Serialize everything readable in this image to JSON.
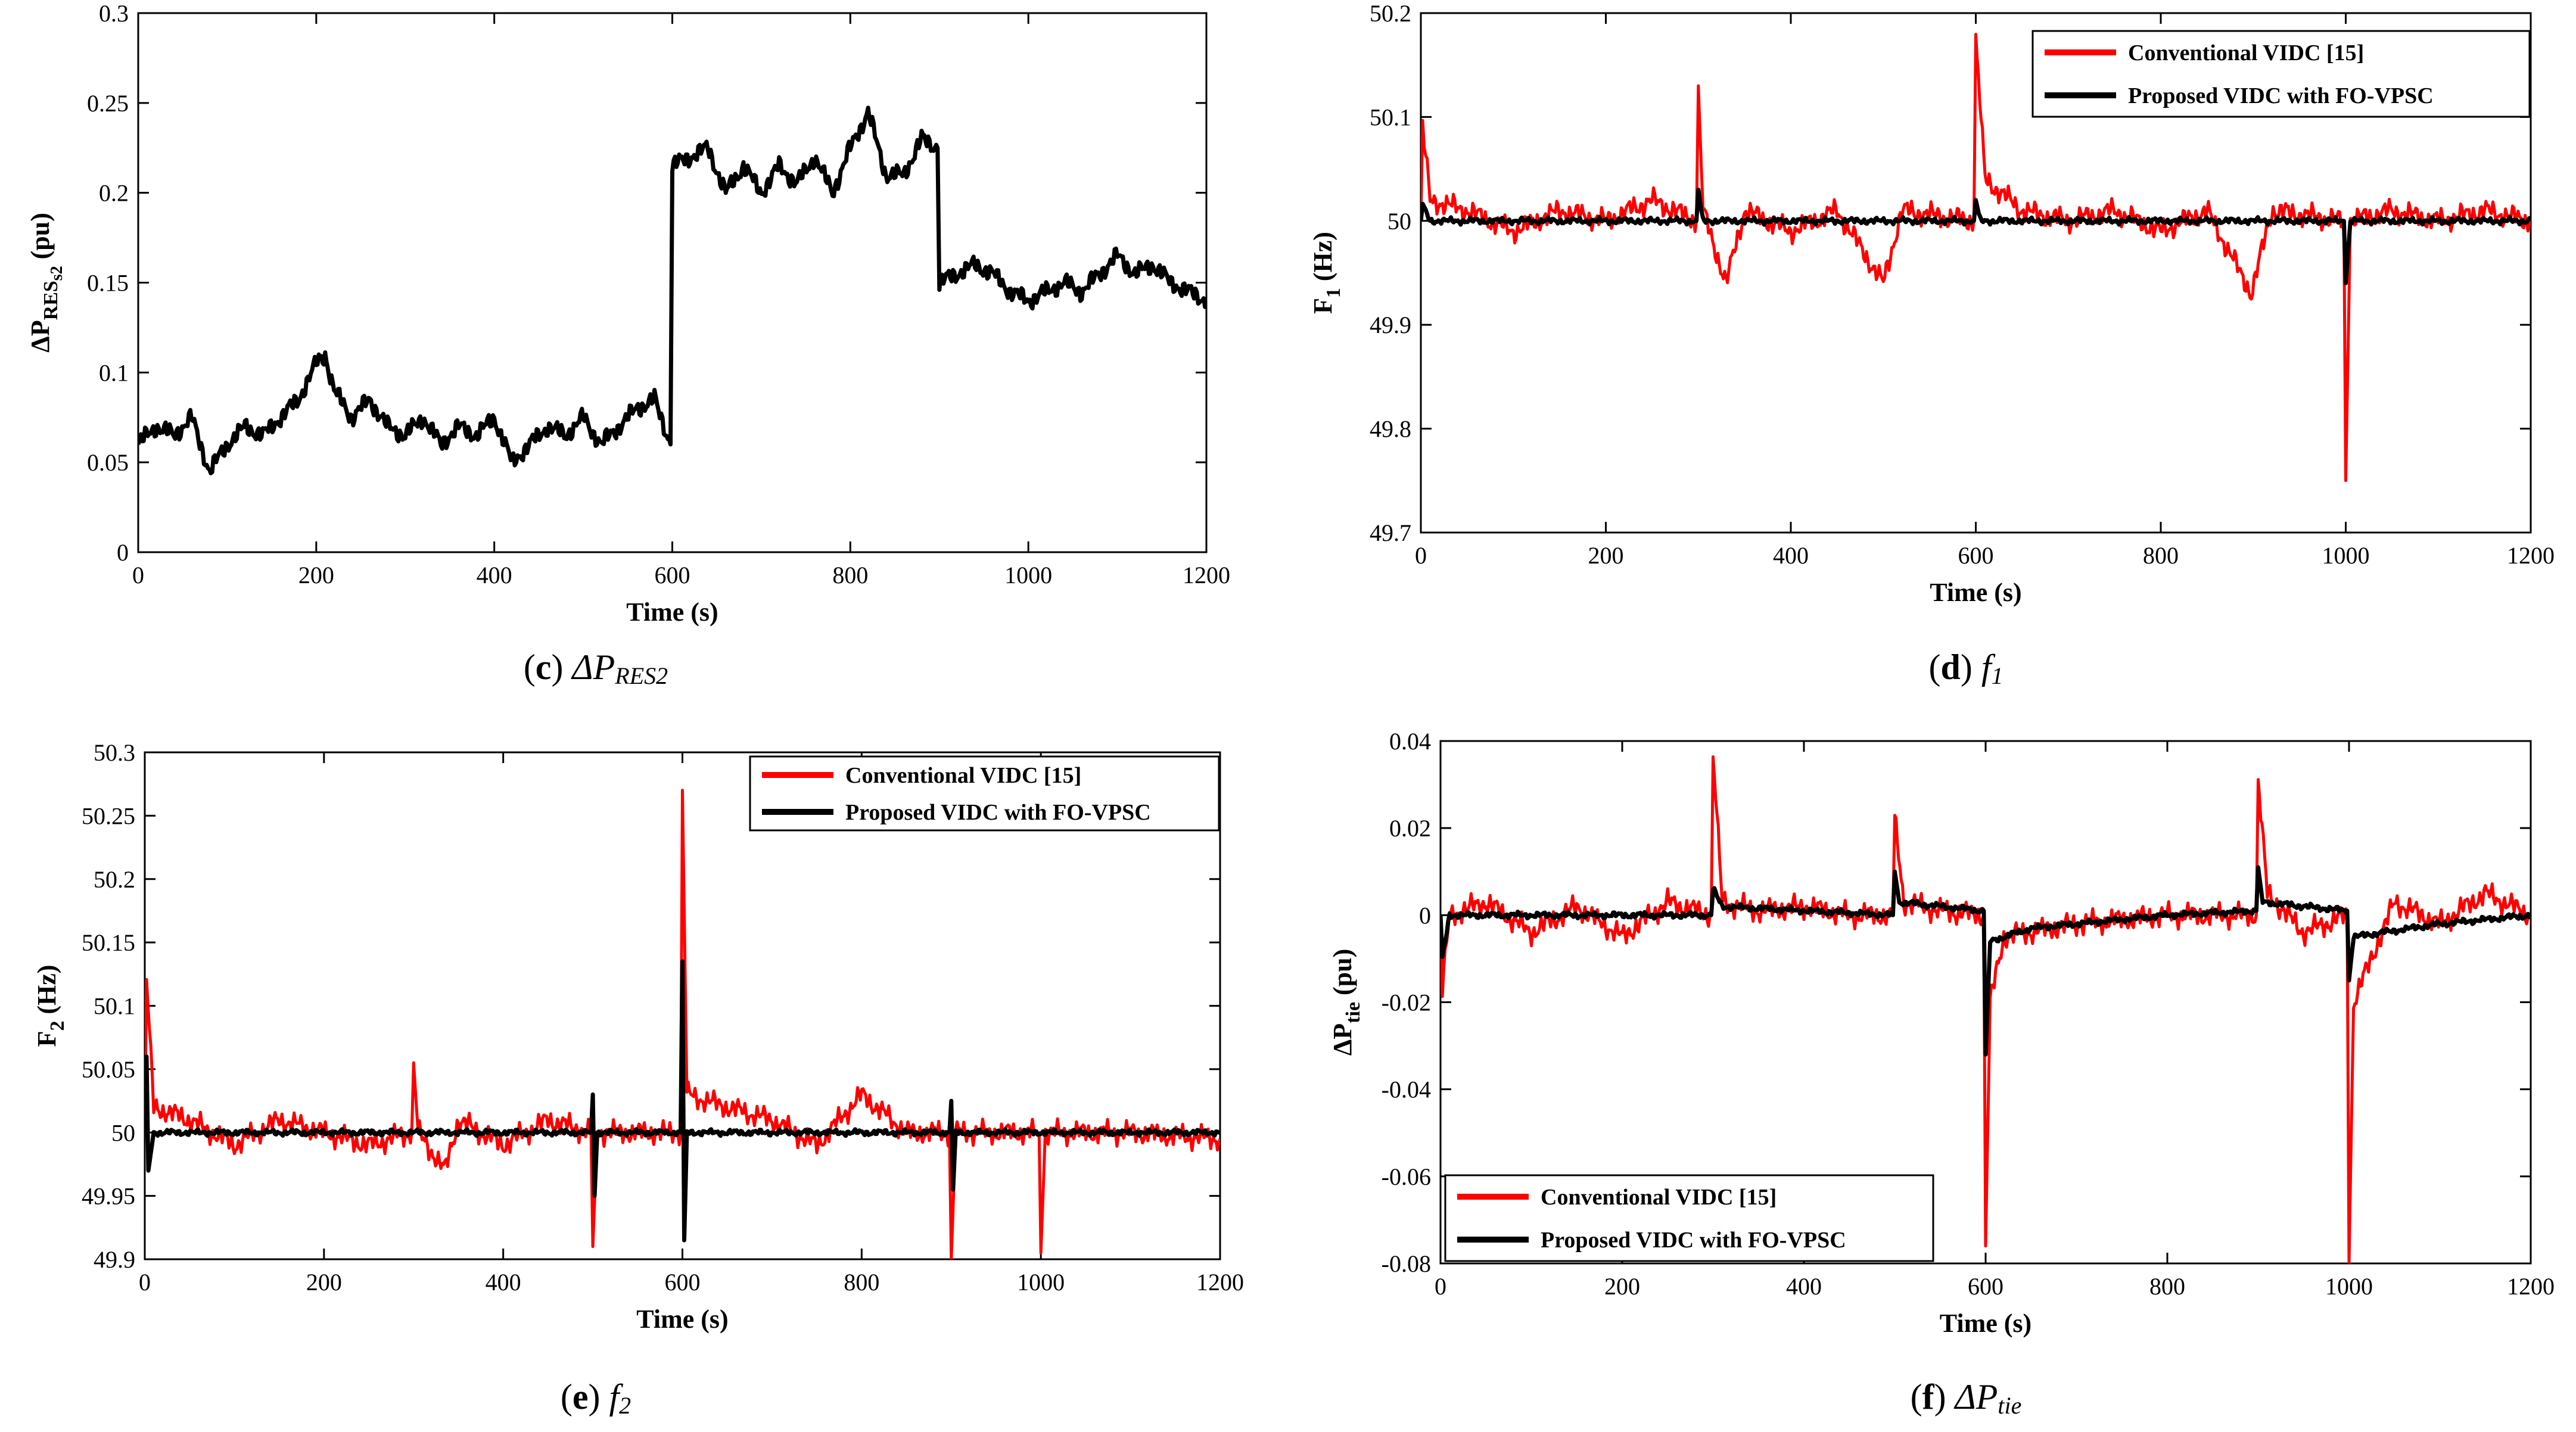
{
  "colors": {
    "conventional": "#ff0000",
    "proposed": "#000000",
    "single": "#000000"
  },
  "chart_data": [
    {
      "id": "c",
      "type": "line",
      "caption": {
        "letter": "(c)",
        "symbol": "ΔP",
        "sub": "RES2"
      },
      "xlabel": "Time (s)",
      "ylabel_main": "ΔP",
      "ylabel_sub": "RES",
      "ylabel_subsub": "s2",
      "ylabel_suffix": " (pu)",
      "xlim": [
        0,
        1200
      ],
      "ylim": [
        0,
        0.3
      ],
      "xticks": [
        0,
        200,
        400,
        600,
        800,
        1000,
        1200
      ],
      "yticks": [
        0,
        0.05,
        0.1,
        0.15,
        0.2,
        0.25,
        0.3
      ],
      "ytick_labels": [
        "0",
        "0.05",
        "0.1",
        "0.15",
        "0.2",
        "0.25",
        "0.3"
      ],
      "legend": [],
      "series": [
        {
          "name": "ΔP_RES2",
          "color_key": "single",
          "points": [
            [
              0,
              0.06
            ],
            [
              20,
              0.07
            ],
            [
              40,
              0.065
            ],
            [
              60,
              0.075
            ],
            [
              80,
              0.045
            ],
            [
              100,
              0.06
            ],
            [
              120,
              0.07
            ],
            [
              140,
              0.065
            ],
            [
              160,
              0.075
            ],
            [
              180,
              0.085
            ],
            [
              200,
              0.105
            ],
            [
              210,
              0.11
            ],
            [
              220,
              0.09
            ],
            [
              240,
              0.075
            ],
            [
              260,
              0.085
            ],
            [
              280,
              0.07
            ],
            [
              300,
              0.065
            ],
            [
              320,
              0.075
            ],
            [
              340,
              0.06
            ],
            [
              360,
              0.07
            ],
            [
              380,
              0.065
            ],
            [
              400,
              0.075
            ],
            [
              420,
              0.05
            ],
            [
              440,
              0.06
            ],
            [
              460,
              0.07
            ],
            [
              480,
              0.065
            ],
            [
              500,
              0.075
            ],
            [
              520,
              0.06
            ],
            [
              540,
              0.07
            ],
            [
              560,
              0.08
            ],
            [
              580,
              0.085
            ],
            [
              598,
              0.06
            ],
            [
              600,
              0.215
            ],
            [
              620,
              0.22
            ],
            [
              640,
              0.225
            ],
            [
              660,
              0.2
            ],
            [
              680,
              0.215
            ],
            [
              700,
              0.2
            ],
            [
              720,
              0.215
            ],
            [
              740,
              0.205
            ],
            [
              760,
              0.22
            ],
            [
              780,
              0.2
            ],
            [
              800,
              0.225
            ],
            [
              820,
              0.245
            ],
            [
              840,
              0.21
            ],
            [
              860,
              0.21
            ],
            [
              880,
              0.23
            ],
            [
              898,
              0.225
            ],
            [
              900,
              0.15
            ],
            [
              920,
              0.155
            ],
            [
              940,
              0.16
            ],
            [
              960,
              0.155
            ],
            [
              980,
              0.145
            ],
            [
              1000,
              0.14
            ],
            [
              1020,
              0.145
            ],
            [
              1040,
              0.15
            ],
            [
              1060,
              0.145
            ],
            [
              1080,
              0.155
            ],
            [
              1100,
              0.165
            ],
            [
              1120,
              0.155
            ],
            [
              1140,
              0.16
            ],
            [
              1160,
              0.15
            ],
            [
              1180,
              0.145
            ],
            [
              1200,
              0.14
            ]
          ]
        }
      ]
    },
    {
      "id": "d",
      "type": "line",
      "caption": {
        "letter": "(d)",
        "symbol": "f",
        "sub": "1"
      },
      "xlabel": "Time (s)",
      "ylabel_main": "F",
      "ylabel_sub": "1",
      "ylabel_subsub": "",
      "ylabel_suffix": " (Hz)",
      "xlim": [
        0,
        1200
      ],
      "ylim": [
        49.7,
        50.2
      ],
      "xticks": [
        0,
        200,
        400,
        600,
        800,
        1000,
        1200
      ],
      "yticks": [
        49.7,
        49.8,
        49.9,
        50,
        50.1,
        50.2
      ],
      "ytick_labels": [
        "49.7",
        "49.8",
        "49.9",
        "50",
        "50.1",
        "50.2"
      ],
      "legend": [
        "Conventional VIDC [15]",
        "Proposed VIDC with FO-VPSC"
      ],
      "legend_position": "top-right",
      "series": [
        {
          "name": "Conventional VIDC [15]",
          "color_key": "conventional",
          "points": [
            [
              0,
              50.0
            ],
            [
              2,
              50.09
            ],
            [
              10,
              50.02
            ],
            [
              50,
              50.01
            ],
            [
              100,
              49.99
            ],
            [
              150,
              50.01
            ],
            [
              200,
              50.0
            ],
            [
              250,
              50.02
            ],
            [
              298,
              50.0
            ],
            [
              300,
              50.13
            ],
            [
              305,
              50.01
            ],
            [
              330,
              49.94
            ],
            [
              350,
              50.01
            ],
            [
              400,
              49.99
            ],
            [
              450,
              50.01
            ],
            [
              500,
              49.94
            ],
            [
              520,
              50.01
            ],
            [
              598,
              50.0
            ],
            [
              600,
              50.175
            ],
            [
              610,
              50.04
            ],
            [
              650,
              50.01
            ],
            [
              700,
              50.0
            ],
            [
              750,
              50.01
            ],
            [
              800,
              49.99
            ],
            [
              850,
              50.01
            ],
            [
              898,
              49.93
            ],
            [
              920,
              50.01
            ],
            [
              998,
              50.0
            ],
            [
              1000,
              49.75
            ],
            [
              1005,
              50.0
            ],
            [
              1050,
              50.01
            ],
            [
              1100,
              50.0
            ],
            [
              1150,
              50.01
            ],
            [
              1200,
              50.0
            ]
          ]
        },
        {
          "name": "Proposed VIDC with FO-VPSC",
          "color_key": "proposed",
          "points": [
            [
              0,
              50.0
            ],
            [
              2,
              50.015
            ],
            [
              10,
              50.0
            ],
            [
              298,
              50.0
            ],
            [
              300,
              50.03
            ],
            [
              305,
              50.0
            ],
            [
              598,
              50.0
            ],
            [
              600,
              50.02
            ],
            [
              605,
              50.0
            ],
            [
              998,
              50.0
            ],
            [
              1000,
              49.94
            ],
            [
              1005,
              50.0
            ],
            [
              1200,
              50.0
            ]
          ]
        }
      ]
    },
    {
      "id": "e",
      "type": "line",
      "caption": {
        "letter": "(e)",
        "symbol": "f",
        "sub": "2"
      },
      "xlabel": "Time (s)",
      "ylabel_main": "F",
      "ylabel_sub": "2",
      "ylabel_subsub": "",
      "ylabel_suffix": " (Hz)",
      "xlim": [
        0,
        1200
      ],
      "ylim": [
        49.9,
        50.3
      ],
      "xticks": [
        0,
        200,
        400,
        600,
        800,
        1000,
        1200
      ],
      "yticks": [
        49.9,
        49.95,
        50,
        50.05,
        50.1,
        50.15,
        50.2,
        50.25,
        50.3
      ],
      "ytick_labels": [
        "49.9",
        "49.95",
        "50",
        "50.05",
        "50.1",
        "50.15",
        "50.2",
        "50.25",
        "50.3"
      ],
      "legend": [
        "Conventional VIDC [15]",
        "Proposed VIDC with FO-VPSC"
      ],
      "legend_position": "top-right",
      "series": [
        {
          "name": "Conventional VIDC [15]",
          "color_key": "conventional",
          "points": [
            [
              0,
              50.0
            ],
            [
              2,
              50.12
            ],
            [
              10,
              50.02
            ],
            [
              50,
              50.01
            ],
            [
              100,
              49.99
            ],
            [
              150,
              50.01
            ],
            [
              200,
              50.0
            ],
            [
              250,
              49.99
            ],
            [
              298,
              50.0
            ],
            [
              300,
              50.055
            ],
            [
              305,
              50.0
            ],
            [
              335,
              49.97
            ],
            [
              350,
              50.01
            ],
            [
              400,
              49.99
            ],
            [
              450,
              50.01
            ],
            [
              498,
              50.0
            ],
            [
              500,
              49.91
            ],
            [
              505,
              50.0
            ],
            [
              598,
              50.0
            ],
            [
              600,
              50.27
            ],
            [
              605,
              50.03
            ],
            [
              650,
              50.02
            ],
            [
              700,
              50.01
            ],
            [
              750,
              49.99
            ],
            [
              800,
              50.03
            ],
            [
              850,
              50.0
            ],
            [
              898,
              50.0
            ],
            [
              900,
              49.9
            ],
            [
              905,
              50.0
            ],
            [
              998,
              50.0
            ],
            [
              1000,
              49.905
            ],
            [
              1005,
              50.0
            ],
            [
              1100,
              50.0
            ],
            [
              1200,
              49.995
            ]
          ]
        },
        {
          "name": "Proposed VIDC with FO-VPSC",
          "color_key": "proposed",
          "points": [
            [
              0,
              50.0
            ],
            [
              2,
              50.06
            ],
            [
              4,
              49.97
            ],
            [
              10,
              50.0
            ],
            [
              498,
              50.0
            ],
            [
              500,
              50.03
            ],
            [
              502,
              49.95
            ],
            [
              505,
              50.0
            ],
            [
              598,
              50.0
            ],
            [
              600,
              50.135
            ],
            [
              602,
              49.915
            ],
            [
              605,
              50.0
            ],
            [
              898,
              50.0
            ],
            [
              900,
              50.025
            ],
            [
              902,
              49.955
            ],
            [
              905,
              50.0
            ],
            [
              1200,
              50.0
            ]
          ]
        }
      ]
    },
    {
      "id": "f",
      "type": "line",
      "caption": {
        "letter": "(f)",
        "symbol": "ΔP",
        "sub": "tie"
      },
      "xlabel": "Time (s)",
      "ylabel_main": "ΔP",
      "ylabel_sub": "tie",
      "ylabel_subsub": "",
      "ylabel_suffix": " (pu)",
      "xlim": [
        0,
        1200
      ],
      "ylim": [
        -0.08,
        0.04
      ],
      "xticks": [
        0,
        200,
        400,
        600,
        800,
        1000,
        1200
      ],
      "yticks": [
        -0.08,
        -0.06,
        -0.04,
        -0.02,
        0,
        0.02,
        0.04
      ],
      "ytick_labels": [
        "-0.08",
        "-0.06",
        "-0.04",
        "-0.02",
        "0",
        "0.02",
        "0.04"
      ],
      "legend": [
        "Conventional VIDC [15]",
        "Proposed VIDC with FO-VPSC"
      ],
      "legend_position": "bottom-left",
      "series": [
        {
          "name": "Conventional VIDC [15]",
          "color_key": "conventional",
          "points": [
            [
              0,
              0.0
            ],
            [
              2,
              -0.017
            ],
            [
              10,
              0.0
            ],
            [
              50,
              0.003
            ],
            [
              100,
              -0.004
            ],
            [
              150,
              0.002
            ],
            [
              200,
              -0.005
            ],
            [
              250,
              0.003
            ],
            [
              298,
              0.0
            ],
            [
              300,
              0.037
            ],
            [
              310,
              0.003
            ],
            [
              350,
              0.001
            ],
            [
              400,
              0.002
            ],
            [
              450,
              0.0
            ],
            [
              498,
              0.0
            ],
            [
              500,
              0.022
            ],
            [
              510,
              0.003
            ],
            [
              550,
              0.001
            ],
            [
              598,
              0.0
            ],
            [
              600,
              -0.076
            ],
            [
              605,
              -0.02
            ],
            [
              620,
              -0.005
            ],
            [
              700,
              -0.002
            ],
            [
              800,
              0.0
            ],
            [
              898,
              0.0
            ],
            [
              900,
              0.031
            ],
            [
              910,
              0.005
            ],
            [
              950,
              -0.004
            ],
            [
              998,
              0.0
            ],
            [
              1000,
              -0.08
            ],
            [
              1005,
              -0.02
            ],
            [
              1050,
              0.003
            ],
            [
              1100,
              -0.002
            ],
            [
              1150,
              0.005
            ],
            [
              1200,
              0.0
            ]
          ]
        },
        {
          "name": "Proposed VIDC with FO-VPSC",
          "color_key": "proposed",
          "points": [
            [
              0,
              0.0
            ],
            [
              2,
              -0.01
            ],
            [
              10,
              0.0
            ],
            [
              298,
              0.0
            ],
            [
              300,
              0.006
            ],
            [
              310,
              0.002
            ],
            [
              498,
              0.0
            ],
            [
              500,
              0.01
            ],
            [
              505,
              0.003
            ],
            [
              598,
              0.001
            ],
            [
              600,
              -0.032
            ],
            [
              605,
              -0.006
            ],
            [
              650,
              -0.003
            ],
            [
              700,
              -0.002
            ],
            [
              800,
              0.0
            ],
            [
              898,
              0.001
            ],
            [
              900,
              0.011
            ],
            [
              905,
              0.003
            ],
            [
              998,
              0.001
            ],
            [
              1000,
              -0.015
            ],
            [
              1005,
              -0.005
            ],
            [
              1100,
              -0.002
            ],
            [
              1200,
              0.0
            ]
          ]
        }
      ]
    }
  ]
}
